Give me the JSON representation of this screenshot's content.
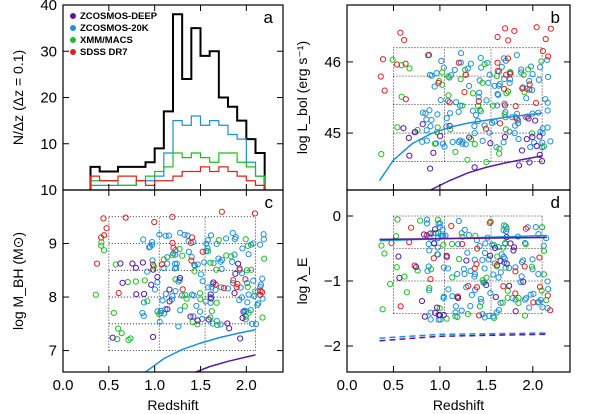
{
  "chart_data": [
    {
      "id": "a",
      "type": "histogram",
      "panel_label": "a",
      "ylabel": "N/Δz  (Δz = 0.1)",
      "xlabel": "",
      "xlim": [
        0.0,
        2.4
      ],
      "ylim": [
        0,
        40
      ],
      "xticks": [
        0.0,
        0.5,
        1.0,
        1.5,
        2.0
      ],
      "yticks": [
        0,
        10,
        20,
        30,
        40
      ],
      "ytick_labels": [
        "",
        "10",
        "20",
        "30",
        "40"
      ],
      "legend": [
        {
          "name": "ZCOSMOS-DEEP",
          "color": "#5a189a"
        },
        {
          "name": "ZCOSMOS-20K",
          "color": "#1f8fd8"
        },
        {
          "name": "XMM/MACS",
          "color": "#22bb22"
        },
        {
          "name": "SDSS DR7",
          "color": "#e02020"
        }
      ],
      "bin_edges": [
        0.3,
        0.4,
        0.5,
        0.6,
        0.7,
        0.8,
        0.9,
        1.0,
        1.1,
        1.2,
        1.3,
        1.4,
        1.5,
        1.6,
        1.7,
        1.8,
        1.9,
        2.0,
        2.1,
        2.2
      ],
      "series": [
        {
          "name": "Total",
          "color": "#000000",
          "values": [
            5,
            4,
            4,
            5,
            5,
            5,
            6,
            9,
            17,
            38,
            24,
            35,
            29,
            30,
            20,
            18,
            15,
            11,
            8
          ]
        },
        {
          "name": "ZCOSMOS-20K",
          "color": "#1f8fd8",
          "values": [
            1,
            1,
            1,
            1,
            1,
            2,
            2,
            3,
            8,
            15,
            14,
            16,
            14,
            15,
            14,
            12,
            11,
            6,
            3
          ]
        },
        {
          "name": "XMM/MACS",
          "color": "#22bb22",
          "values": [
            2,
            2,
            2,
            1,
            1,
            2,
            3,
            4,
            5,
            8,
            7,
            8,
            7,
            6,
            8,
            8,
            6,
            5,
            3
          ]
        },
        {
          "name": "SDSS DR7",
          "color": "#e02020",
          "values": [
            3,
            2,
            2,
            3,
            3,
            2,
            1,
            2,
            2,
            3,
            4,
            4,
            5,
            4,
            5,
            4,
            3,
            2,
            1
          ]
        }
      ]
    },
    {
      "id": "b",
      "type": "scatter",
      "panel_label": "b",
      "ylabel": "log L_bol (erg s⁻¹)",
      "xlabel": "",
      "xlim": [
        0.0,
        2.4
      ],
      "ylim": [
        44.2,
        46.8
      ],
      "yticks": [
        45,
        46
      ],
      "ytick_labels": [
        "45",
        "46"
      ],
      "grid_x": [
        0.5,
        1.05,
        1.55,
        2.1
      ],
      "grid_y": [
        44.6,
        45.0,
        45.4,
        45.8,
        46.2
      ],
      "curves": [
        {
          "name": "ZCOSMOS-20K limit",
          "color": "#1f8fd8",
          "x": [
            0.35,
            0.5,
            0.7,
            0.9,
            1.1,
            1.3,
            1.5,
            1.7,
            1.9,
            2.1
          ],
          "y": [
            44.33,
            44.62,
            44.85,
            44.99,
            45.08,
            45.14,
            45.18,
            45.22,
            45.25,
            45.28
          ]
        },
        {
          "name": "ZCOSMOS-DEEP limit",
          "color": "#5a189a",
          "x": [
            0.9,
            1.1,
            1.3,
            1.5,
            1.7,
            1.9,
            2.1
          ],
          "y": [
            44.2,
            44.33,
            44.44,
            44.52,
            44.58,
            44.63,
            44.68
          ]
        }
      ],
      "series": [
        {
          "name": "ZCOSMOS-20K",
          "color": "#1f8fd8",
          "seed": 11,
          "n": 120,
          "xrange": [
            0.8,
            2.2
          ],
          "yrange": [
            44.75,
            46.15
          ]
        },
        {
          "name": "XMM/MACS",
          "color": "#22bb22",
          "seed": 23,
          "n": 45,
          "xrange": [
            0.35,
            2.2
          ],
          "yrange": [
            44.55,
            46.05
          ]
        },
        {
          "name": "SDSS DR7",
          "color": "#e02020",
          "seed": 37,
          "n": 40,
          "xrange": [
            0.35,
            2.2
          ],
          "yrange": [
            45.0,
            46.55
          ]
        },
        {
          "name": "ZCOSMOS-DEEP",
          "color": "#5a189a",
          "seed": 51,
          "n": 25,
          "xrange": [
            0.55,
            2.1
          ],
          "yrange": [
            44.45,
            45.25
          ]
        }
      ]
    },
    {
      "id": "c",
      "type": "scatter",
      "panel_label": "c",
      "ylabel": "log M_BH (M⊙)",
      "xlabel": "Redshift",
      "xlim": [
        0.0,
        2.4
      ],
      "ylim": [
        6.6,
        10.0
      ],
      "xticks": [
        0.0,
        0.5,
        1.0,
        1.5,
        2.0
      ],
      "xtick_labels": [
        "0.0",
        "0.5",
        "1.0",
        "1.5",
        "2.0"
      ],
      "yticks": [
        7,
        8,
        9,
        10
      ],
      "ytick_labels": [
        "7",
        "8",
        "9",
        "10"
      ],
      "grid_x": [
        0.5,
        1.05,
        1.55,
        2.1
      ],
      "grid_y": [
        7.0,
        7.5,
        8.0,
        8.5,
        9.0,
        9.5
      ],
      "curves": [
        {
          "name": "ZCOSMOS-20K limit",
          "color": "#1f8fd8",
          "x": [
            0.9,
            1.1,
            1.3,
            1.5,
            1.7,
            1.9,
            2.1
          ],
          "y": [
            6.6,
            6.85,
            7.02,
            7.14,
            7.24,
            7.32,
            7.39
          ]
        },
        {
          "name": "ZCOSMOS-DEEP limit",
          "color": "#5a189a",
          "x": [
            1.45,
            1.6,
            1.8,
            2.0,
            2.1
          ],
          "y": [
            6.6,
            6.7,
            6.8,
            6.88,
            6.92
          ]
        }
      ],
      "series": [
        {
          "name": "ZCOSMOS-20K",
          "color": "#1f8fd8",
          "seed": 61,
          "n": 120,
          "xrange": [
            0.85,
            2.2
          ],
          "yrange": [
            7.4,
            9.2
          ]
        },
        {
          "name": "XMM/MACS",
          "color": "#22bb22",
          "seed": 73,
          "n": 50,
          "xrange": [
            0.35,
            2.2
          ],
          "yrange": [
            7.0,
            9.2
          ]
        },
        {
          "name": "SDSS DR7",
          "color": "#e02020",
          "seed": 89,
          "n": 30,
          "xrange": [
            0.35,
            2.2
          ],
          "yrange": [
            8.0,
            9.6
          ]
        },
        {
          "name": "ZCOSMOS-DEEP",
          "color": "#5a189a",
          "seed": 97,
          "n": 30,
          "xrange": [
            0.5,
            2.1
          ],
          "yrange": [
            7.2,
            9.0
          ]
        }
      ]
    },
    {
      "id": "d",
      "type": "scatter",
      "panel_label": "d",
      "ylabel": "log λ_E",
      "xlabel": "Redshift",
      "xlim": [
        0.0,
        2.4
      ],
      "ylim": [
        -2.4,
        0.4
      ],
      "xticks": [
        0.0,
        0.5,
        1.0,
        1.5,
        2.0
      ],
      "xtick_labels": [
        "0.0",
        "0.5",
        "1.0",
        "1.5",
        "2.0"
      ],
      "yticks": [
        -2,
        -1,
        0
      ],
      "ytick_labels": [
        "−2",
        "−1",
        "0"
      ],
      "grid_x": [
        0.5,
        1.05,
        1.55,
        2.1
      ],
      "grid_y": [
        -1.5,
        -1.0,
        -0.5,
        0.0
      ],
      "curves": [
        {
          "name": "upper solid",
          "color": "#1f8fd8",
          "dash": false,
          "x": [
            0.35,
            2.15
          ],
          "y": [
            -0.38,
            -0.3
          ]
        },
        {
          "name": "upper solid purple",
          "color": "#5a189a",
          "dash": false,
          "x": [
            0.35,
            2.15
          ],
          "y": [
            -0.36,
            -0.33
          ]
        },
        {
          "name": "lower dashed",
          "color": "#1f8fd8",
          "dash": true,
          "x": [
            0.35,
            1.0,
            2.15
          ],
          "y": [
            -1.88,
            -1.82,
            -1.8
          ]
        },
        {
          "name": "lower dashed purple",
          "color": "#5a189a",
          "dash": true,
          "x": [
            0.35,
            1.0,
            2.15
          ],
          "y": [
            -1.92,
            -1.85,
            -1.82
          ]
        }
      ],
      "series": [
        {
          "name": "ZCOSMOS-20K",
          "color": "#1f8fd8",
          "seed": 101,
          "n": 120,
          "xrange": [
            0.85,
            2.2
          ],
          "yrange": [
            -1.6,
            -0.05
          ]
        },
        {
          "name": "XMM/MACS",
          "color": "#22bb22",
          "seed": 113,
          "n": 50,
          "xrange": [
            0.35,
            2.2
          ],
          "yrange": [
            -1.6,
            0.0
          ]
        },
        {
          "name": "SDSS DR7",
          "color": "#e02020",
          "seed": 127,
          "n": 30,
          "xrange": [
            0.35,
            2.2
          ],
          "yrange": [
            -1.6,
            -0.1
          ]
        },
        {
          "name": "ZCOSMOS-DEEP",
          "color": "#5a189a",
          "seed": 131,
          "n": 30,
          "xrange": [
            0.5,
            2.1
          ],
          "yrange": [
            -1.55,
            -0.2
          ]
        }
      ]
    }
  ]
}
